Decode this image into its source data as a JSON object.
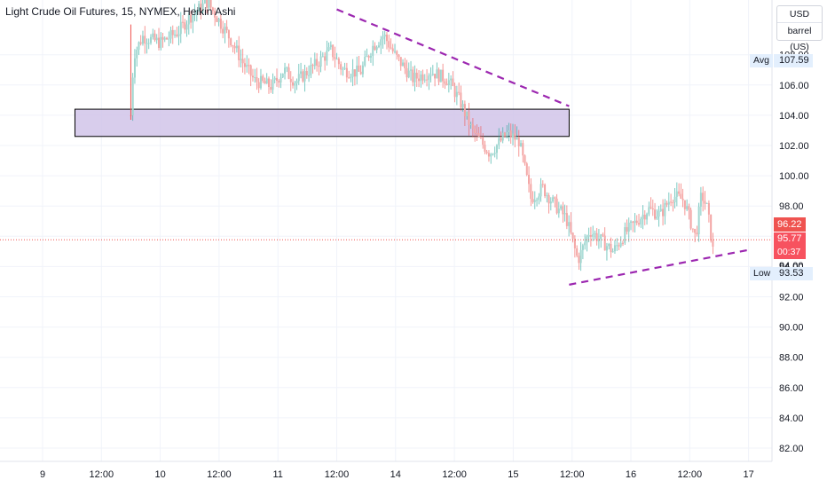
{
  "header": {
    "title": "Light Crude Oil Futures, 15, NYMEX, Heikin Ashi"
  },
  "scale": {
    "currency": "USD",
    "unit": "barrel (US)"
  },
  "markers": {
    "avg_label": "Avg",
    "avg_value": "107.59",
    "low_label": "Low",
    "low_value": "93.53",
    "price_high": "96.22",
    "price_last": "95.77",
    "countdown": "00:37",
    "partial_tick": "94.00"
  },
  "colors": {
    "up": "#26a69a",
    "down": "#ef5350",
    "up_soft": "#9fd6cf",
    "down_soft": "#f3a5a4",
    "trendline": "#9c27b0",
    "zone_fill": "#d1c4e9",
    "zone_border": "#000000",
    "price_line": "#ef5350"
  },
  "chart_data": {
    "type": "candlestick",
    "symbol": "NYMEX",
    "interval": "15",
    "style": "Heikin Ashi",
    "ylim": [
      81,
      110
    ],
    "xlim": [
      0,
      15
    ],
    "grid": true,
    "y_ticks": [
      "82.00",
      "84.00",
      "86.00",
      "88.00",
      "90.00",
      "92.00",
      "94.00",
      "96.00",
      "98.00",
      "100.00",
      "102.00",
      "104.00",
      "106.00",
      "108.00"
    ],
    "x_ticks": [
      {
        "x": 0,
        "label": "9"
      },
      {
        "x": 1,
        "label": "12:00"
      },
      {
        "x": 2,
        "label": "10"
      },
      {
        "x": 3,
        "label": "12:00"
      },
      {
        "x": 4,
        "label": "11"
      },
      {
        "x": 5,
        "label": "12:00"
      },
      {
        "x": 6,
        "label": "14"
      },
      {
        "x": 7,
        "label": "12:00"
      },
      {
        "x": 8,
        "label": "15"
      },
      {
        "x": 9,
        "label": "12:00"
      },
      {
        "x": 10,
        "label": "16"
      },
      {
        "x": 11,
        "label": "12:00"
      },
      {
        "x": 12,
        "label": "17"
      }
    ],
    "price_path": [
      [
        1.5,
        104.0
      ],
      [
        1.55,
        108.0
      ],
      [
        1.7,
        109.2
      ],
      [
        2.0,
        108.8
      ],
      [
        2.3,
        109.5
      ],
      [
        2.5,
        110.5
      ],
      [
        2.8,
        111.5
      ],
      [
        3.2,
        109.0
      ],
      [
        3.4,
        107.5
      ],
      [
        3.6,
        106.3
      ],
      [
        3.9,
        105.9
      ],
      [
        4.1,
        107.0
      ],
      [
        4.3,
        106.2
      ],
      [
        4.6,
        107.2
      ],
      [
        4.9,
        108.3
      ],
      [
        5.1,
        107.0
      ],
      [
        5.4,
        106.8
      ],
      [
        5.6,
        108.5
      ],
      [
        5.8,
        109.3
      ],
      [
        6.0,
        107.9
      ],
      [
        6.3,
        106.4
      ],
      [
        6.6,
        106.9
      ],
      [
        6.9,
        106.3
      ],
      [
        7.1,
        104.9
      ],
      [
        7.3,
        103.0
      ],
      [
        7.6,
        101.5
      ],
      [
        7.9,
        102.8
      ],
      [
        8.1,
        102.3
      ],
      [
        8.3,
        98.5
      ],
      [
        8.5,
        99.2
      ],
      [
        8.7,
        98.1
      ],
      [
        8.9,
        97.2
      ],
      [
        9.1,
        94.4
      ],
      [
        9.3,
        96.4
      ],
      [
        9.5,
        95.7
      ],
      [
        9.7,
        95.0
      ],
      [
        9.9,
        96.2
      ],
      [
        10.1,
        97.0
      ],
      [
        10.3,
        97.8
      ],
      [
        10.5,
        97.4
      ],
      [
        10.7,
        98.7
      ],
      [
        10.9,
        98.4
      ],
      [
        11.1,
        95.9
      ],
      [
        11.2,
        98.8
      ],
      [
        11.3,
        97.8
      ],
      [
        11.4,
        94.9
      ]
    ],
    "trendlines": [
      {
        "name": "descending resistance",
        "from": [
          5.0,
          111.0
        ],
        "to": [
          8.95,
          104.6
        ]
      },
      {
        "name": "ascending support",
        "from": [
          8.95,
          92.8
        ],
        "to": [
          12.0,
          95.1
        ]
      }
    ],
    "zones": [
      {
        "name": "supply zone",
        "x0": 0.55,
        "x1": 8.95,
        "y0": 102.6,
        "y1": 104.4
      }
    ],
    "last_price": 95.77,
    "avg_price": 107.59,
    "low_price": 93.53
  }
}
